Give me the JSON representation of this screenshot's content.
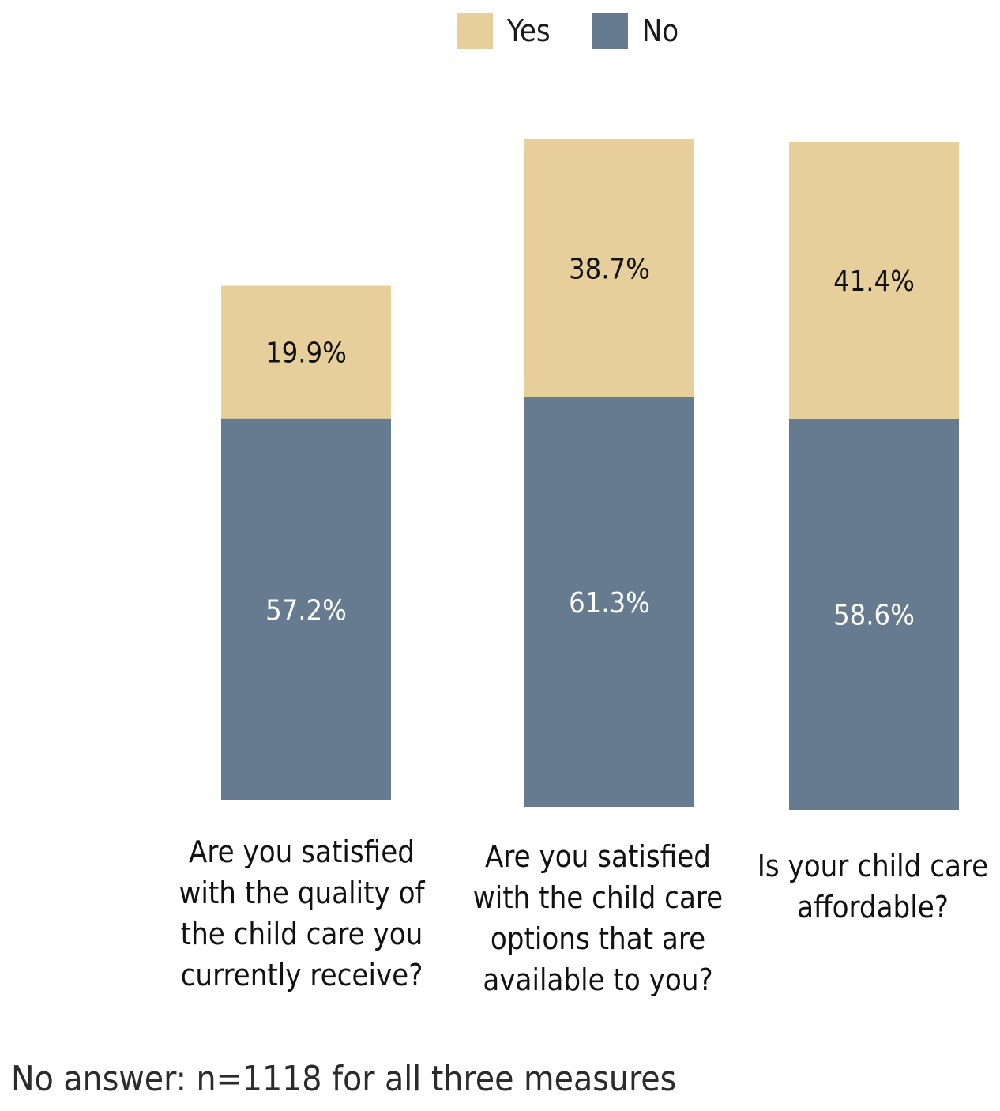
{
  "legend": {
    "yes_label": "Yes",
    "no_label": "No",
    "yes_color": "#e7cf9b",
    "no_color": "#667b8f"
  },
  "chart_data": {
    "type": "bar",
    "stacked": true,
    "categories": [
      "Are you satisfied\nwith the quality of\nthe child care you\ncurrently receive?",
      "Are you satisfied\nwith the child care\noptions that are\navailable to you?",
      "Is your child care\naffordable?"
    ],
    "series": [
      {
        "name": "No",
        "values": [
          57.2,
          61.3,
          58.6
        ],
        "labels": [
          "57.2%",
          "61.3%",
          "58.6%"
        ],
        "color": "#667b8f"
      },
      {
        "name": "Yes",
        "values": [
          19.9,
          38.7,
          41.4
        ],
        "labels": [
          "19.9%",
          "38.7%",
          "41.4%"
        ],
        "color": "#e7cf9b"
      }
    ],
    "legend_position": "top"
  },
  "footnote": "No answer: n=1118 for all three measures"
}
